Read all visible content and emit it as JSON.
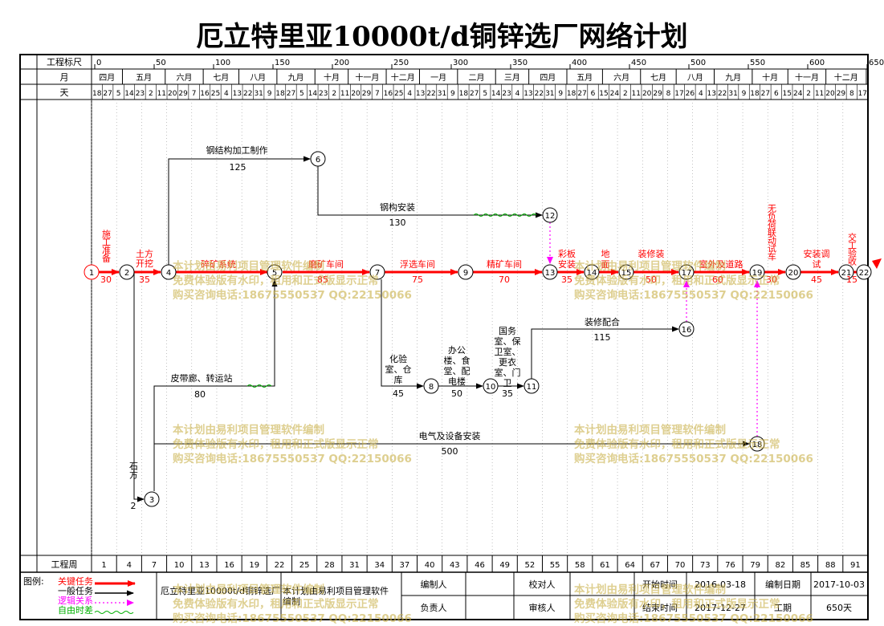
{
  "title": "厄立特里亚10000t/d铜锌选厂网络计划",
  "header": {
    "scale_label": "工程标尺",
    "scale_ticks": [
      "0",
      "50",
      "100",
      "150",
      "200",
      "250",
      "300",
      "350",
      "400",
      "450",
      "500",
      "550",
      "600",
      "650"
    ],
    "month_label": "月",
    "months": [
      "四月",
      "五月",
      "六月",
      "七月",
      "八月",
      "九月",
      "十月",
      "十一月",
      "十二月",
      "一月",
      "二月",
      "三月",
      "四月",
      "五月",
      "六月",
      "七月",
      "八月",
      "九月",
      "十月",
      "十一月",
      "十二月"
    ],
    "day_label": "天",
    "days": [
      "18",
      "27",
      "5",
      "14",
      "23",
      "2",
      "11",
      "20",
      "29",
      "7",
      "16",
      "25",
      "4",
      "13",
      "22",
      "31",
      "9",
      "18",
      "27",
      "5",
      "14",
      "23",
      "2",
      "11",
      "20",
      "29",
      "7",
      "16",
      "25",
      "4",
      "13",
      "22",
      "31",
      "9",
      "18",
      "27",
      "5",
      "14",
      "23",
      "4",
      "13",
      "22",
      "31",
      "9",
      "18",
      "27",
      "6",
      "15",
      "24",
      "2",
      "11",
      "20",
      "29",
      "8",
      "17",
      "26",
      "4",
      "13",
      "22",
      "31",
      "9",
      "18",
      "27",
      "6",
      "15",
      "24",
      "2",
      "11",
      "20",
      "29",
      "8",
      "17"
    ]
  },
  "week_row": {
    "label": "工程周",
    "weeks": [
      "1",
      "4",
      "7",
      "10",
      "13",
      "16",
      "19",
      "22",
      "25",
      "28",
      "31",
      "34",
      "37",
      "40",
      "43",
      "46",
      "49",
      "52",
      "55",
      "58",
      "61",
      "64",
      "67",
      "70",
      "73",
      "76",
      "79",
      "82",
      "85",
      "88",
      "91"
    ]
  },
  "network": {
    "nodes": [
      "1",
      "2",
      "3",
      "4",
      "5",
      "6",
      "7",
      "8",
      "9",
      "10",
      "11",
      "12",
      "13",
      "14",
      "15",
      "16",
      "17",
      "18",
      "19",
      "20",
      "21",
      "22"
    ],
    "tasks": [
      {
        "id": "t1",
        "name": "施工准备",
        "duration": "30",
        "critical": true
      },
      {
        "id": "t2",
        "name": "土方开挖",
        "duration": "35",
        "critical": true
      },
      {
        "id": "t3",
        "name": "石方",
        "duration": "2",
        "critical": false
      },
      {
        "id": "t4",
        "name": "碎矿系统",
        "duration": "",
        "critical": true
      },
      {
        "id": "t5",
        "name": "钢结构加工制作",
        "duration": "125",
        "critical": false
      },
      {
        "id": "t6",
        "name": "皮带廊、转运站",
        "duration": "80",
        "critical": false
      },
      {
        "id": "t7",
        "name": "电气及设备安装",
        "duration": "500",
        "critical": false
      },
      {
        "id": "t8",
        "name": "磨矿车间",
        "duration": "85",
        "critical": true
      },
      {
        "id": "t9",
        "name": "钢构安装",
        "duration": "130",
        "critical": false
      },
      {
        "id": "t10",
        "name": "浮选车间",
        "duration": "75",
        "critical": true
      },
      {
        "id": "t11",
        "name": "化验室、仓库",
        "duration": "45",
        "critical": false
      },
      {
        "id": "t12",
        "name": "办公楼、食堂、配电楼",
        "duration": "50",
        "critical": false
      },
      {
        "id": "t13",
        "name": "精矿车间",
        "duration": "70",
        "critical": true
      },
      {
        "id": "t14",
        "name": "卫室、门卫",
        "duration": "35",
        "critical": false
      },
      {
        "id": "t15",
        "name": "彩板安装",
        "duration": "35",
        "critical": true
      },
      {
        "id": "t16",
        "name": "装修配合",
        "duration": "115",
        "critical": false
      },
      {
        "id": "t17",
        "name": "地面",
        "duration": "",
        "critical": true
      },
      {
        "id": "t18",
        "name": "装修装",
        "duration": "50",
        "critical": true
      },
      {
        "id": "t19",
        "name": "室外及道路",
        "duration": "60",
        "critical": true
      },
      {
        "id": "t20",
        "name": "无负荷联动试车",
        "duration": "30",
        "critical": true
      },
      {
        "id": "t21",
        "name": "安装调试",
        "duration": "45",
        "critical": true
      },
      {
        "id": "t22",
        "name": "交工验收",
        "duration": "15",
        "critical": true
      }
    ],
    "extra_labels": {
      "node10_note": "国务室、保",
      "node10_note2": "更衣"
    }
  },
  "watermark": {
    "line1": "本计划由易利项目管理软件编制",
    "line2": "免费体验版有水印，租用和正式版显示正常",
    "line3": "购买咨询电话:18675550537 QQ:22150066"
  },
  "footer": {
    "legend_title": "图例:",
    "legend": [
      {
        "label": "关键任务",
        "color": "#ff0000"
      },
      {
        "label": "一般任务",
        "color": "#000000"
      },
      {
        "label": "逻辑关系",
        "color": "#ff00ff"
      },
      {
        "label": "自由时差",
        "color": "#00b000"
      }
    ],
    "project_title": "厄立特里亚10000t/d铜锌选厂",
    "software_note": "本计划由易利项目管理软件",
    "compiled_label": "编制",
    "editor_label": "编制人",
    "editor_value": "",
    "responsible_label": "负责人",
    "responsible_value": "",
    "checker_label": "校对人",
    "reviewer_label": "审核人",
    "start_label": "开始时间",
    "start_value": "2016-03-18",
    "end_label": "结束时间",
    "end_value": "2017-12-27",
    "compile_date_label": "编制日期",
    "compile_date_value": "2017-10-03",
    "duration_label": "工期",
    "duration_value": "650天"
  },
  "colors": {
    "critical": "#ff0000",
    "normal": "#000000",
    "logic": "#ff00ff",
    "float": "#00b000",
    "watermark": "#c8af46"
  }
}
